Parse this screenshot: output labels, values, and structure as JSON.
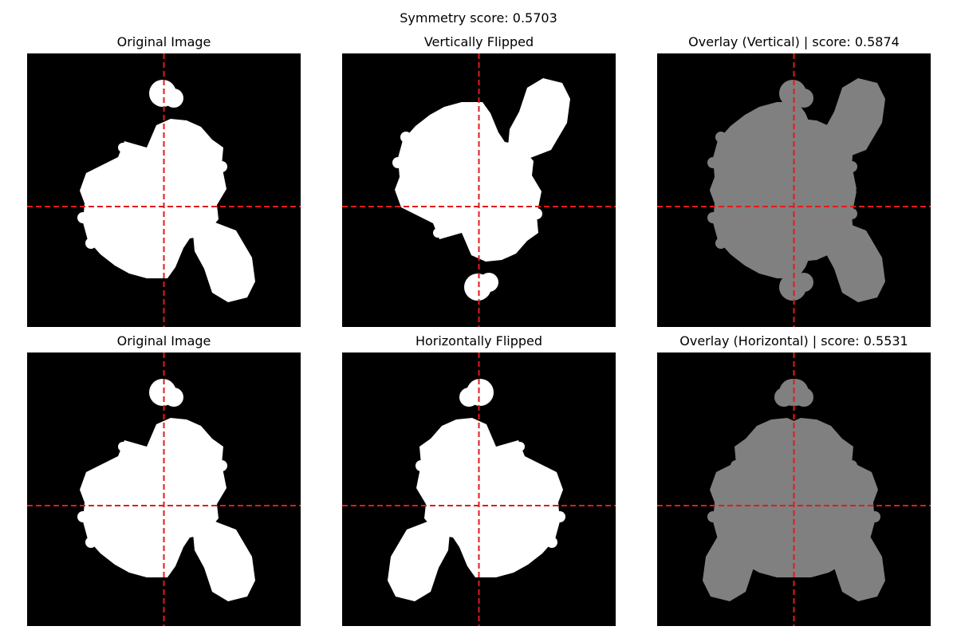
{
  "figure": {
    "suptitle": "Symmetry score: 0.5703"
  },
  "panels": [
    {
      "title": "Original Image"
    },
    {
      "title": "Vertically Flipped"
    },
    {
      "title": "Overlay (Vertical) | score: 0.5874"
    },
    {
      "title": "Original Image"
    },
    {
      "title": "Horizontally Flipped"
    },
    {
      "title": "Overlay (Horizontal) | score: 0.5531"
    }
  ],
  "colors": {
    "background": "#000000",
    "shape": "#ffffff",
    "overlay_single": "#808080",
    "guide_lines": "#e31a1c"
  }
}
